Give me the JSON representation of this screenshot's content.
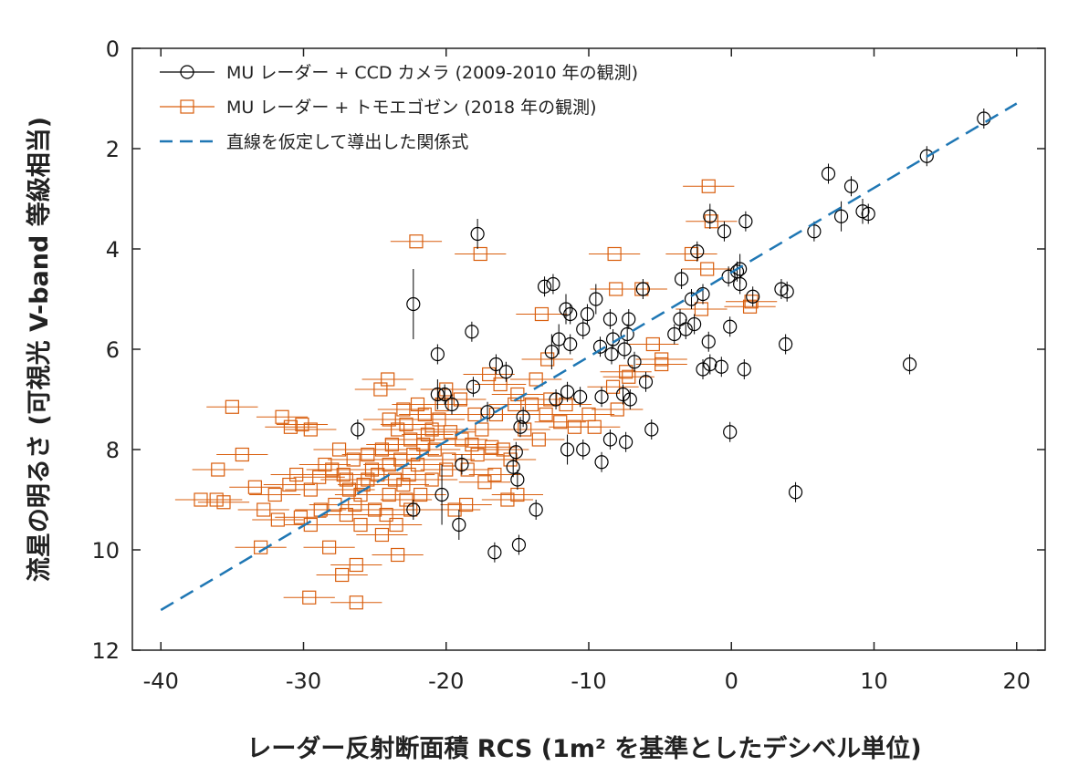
{
  "chart_data": {
    "type": "scatter",
    "xlabel": "レーダー反射断面積 RCS (1m² を基準としたデシベル単位)",
    "ylabel": "流星の明るさ (可視光 V-band 等級相当)",
    "xlim": [
      -42,
      22
    ],
    "ylim": [
      0,
      12
    ],
    "y_reversed": true,
    "x_ticks": [
      -40,
      -30,
      -20,
      -10,
      0,
      10,
      20
    ],
    "y_ticks": [
      0,
      2,
      4,
      6,
      8,
      10,
      12
    ],
    "grid": false,
    "legend_placement": "top-left",
    "series": [
      {
        "name": "MU レーダー + CCD カメラ (2009-2010 年の観測)",
        "marker": "circle",
        "color": "#000000",
        "points": [
          [
            17.7,
            1.4,
            0.2
          ],
          [
            13.7,
            2.15,
            0.2
          ],
          [
            6.8,
            2.5,
            0.2
          ],
          [
            8.4,
            2.75,
            0.2
          ],
          [
            9.2,
            3.25,
            0.25
          ],
          [
            9.6,
            3.3,
            0.2
          ],
          [
            7.7,
            3.35,
            0.3
          ],
          [
            5.8,
            3.65,
            0.2
          ],
          [
            1.0,
            3.45,
            0.2
          ],
          [
            -1.5,
            3.35,
            0.25
          ],
          [
            -0.5,
            3.65,
            0.2
          ],
          [
            -2.4,
            4.05,
            0.2
          ],
          [
            0.6,
            4.4,
            0.3
          ],
          [
            0.4,
            4.45,
            0.2
          ],
          [
            -0.2,
            4.55,
            0.2
          ],
          [
            0.6,
            4.7,
            0.2
          ],
          [
            1.5,
            4.95,
            0.2
          ],
          [
            3.5,
            4.8,
            0.2
          ],
          [
            3.9,
            4.85,
            0.2
          ],
          [
            -3.5,
            4.6,
            0.2
          ],
          [
            -2.0,
            4.9,
            0.2
          ],
          [
            -2.8,
            5.0,
            0.2
          ],
          [
            -3.6,
            5.4,
            0.2
          ],
          [
            -3.2,
            5.6,
            0.2
          ],
          [
            -4.0,
            5.7,
            0.2
          ],
          [
            -2.6,
            5.5,
            0.2
          ],
          [
            -1.6,
            5.85,
            0.2
          ],
          [
            -0.1,
            5.55,
            0.2
          ],
          [
            3.8,
            5.9,
            0.2
          ],
          [
            -1.5,
            6.3,
            0.2
          ],
          [
            -0.7,
            6.35,
            0.2
          ],
          [
            -2.0,
            6.4,
            0.2
          ],
          [
            0.9,
            6.4,
            0.2
          ],
          [
            12.5,
            6.3,
            0.2
          ],
          [
            -6.0,
            6.65,
            0.2
          ],
          [
            -6.2,
            4.8,
            0.2
          ],
          [
            -9.5,
            5.0,
            0.3
          ],
          [
            -8.5,
            5.4,
            0.2
          ],
          [
            -7.2,
            5.4,
            0.2
          ],
          [
            -7.3,
            5.7,
            0.2
          ],
          [
            -10.1,
            5.3,
            0.2
          ],
          [
            -10.4,
            5.6,
            0.2
          ],
          [
            -11.3,
            5.9,
            0.2
          ],
          [
            -12.1,
            5.8,
            0.3
          ],
          [
            -8.3,
            5.8,
            0.2
          ],
          [
            -9.2,
            5.95,
            0.2
          ],
          [
            -8.4,
            6.1,
            0.2
          ],
          [
            -7.5,
            6.0,
            0.2
          ],
          [
            -6.8,
            6.25,
            0.2
          ],
          [
            -11.3,
            5.3,
            0.2
          ],
          [
            -11.6,
            5.2,
            0.3
          ],
          [
            -12.5,
            4.7,
            0.2
          ],
          [
            -13.1,
            4.75,
            0.2
          ],
          [
            -11.5,
            6.85,
            0.2
          ],
          [
            -10.6,
            6.95,
            0.2
          ],
          [
            -12.3,
            7.0,
            0.2
          ],
          [
            -9.1,
            6.95,
            0.2
          ],
          [
            -7.6,
            6.9,
            0.2
          ],
          [
            -7.1,
            7.0,
            0.2
          ],
          [
            -5.6,
            7.6,
            0.2
          ],
          [
            -7.4,
            7.85,
            0.2
          ],
          [
            -8.5,
            7.8,
            0.2
          ],
          [
            -10.4,
            8.0,
            0.2
          ],
          [
            -11.5,
            8.0,
            0.3
          ],
          [
            -9.1,
            8.25,
            0.2
          ],
          [
            -0.1,
            7.65,
            0.2
          ],
          [
            4.5,
            8.85,
            0.2
          ],
          [
            -12.6,
            6.05,
            0.35
          ],
          [
            -17.8,
            3.7,
            0.3
          ],
          [
            -22.3,
            5.1,
            0.7
          ],
          [
            -18.2,
            5.65,
            0.2
          ],
          [
            -16.5,
            6.3,
            0.2
          ],
          [
            -15.8,
            6.45,
            0.2
          ],
          [
            -20.6,
            6.1,
            0.2
          ],
          [
            -20.1,
            6.9,
            0.2
          ],
          [
            -19.6,
            7.1,
            0.2
          ],
          [
            -18.1,
            6.75,
            0.2
          ],
          [
            -17.1,
            7.25,
            0.2
          ],
          [
            -14.6,
            7.35,
            0.2
          ],
          [
            -14.8,
            7.55,
            0.2
          ],
          [
            -15.1,
            8.05,
            0.2
          ],
          [
            -15.3,
            8.35,
            0.2
          ],
          [
            -15.0,
            8.6,
            0.2
          ],
          [
            -14.9,
            9.9,
            0.2
          ],
          [
            -16.6,
            10.05,
            0.2
          ],
          [
            -13.7,
            9.2,
            0.2
          ],
          [
            -19.1,
            9.5,
            0.3
          ],
          [
            -20.3,
            8.9,
            0.6
          ],
          [
            -22.3,
            9.2,
            0.2
          ],
          [
            -26.2,
            7.6,
            0.2
          ],
          [
            -18.9,
            8.3,
            0.2
          ],
          [
            -20.6,
            6.9,
            0.3
          ]
        ]
      },
      {
        "name": "MU レーダー + トモエゴゼン (2018 年の観測)",
        "marker": "square",
        "color": "#d95f0e",
        "points": [
          [
            -1.6,
            2.75,
            0.15
          ],
          [
            -1.4,
            3.45,
            0.15
          ],
          [
            -2.8,
            4.1,
            0.15
          ],
          [
            -1.7,
            4.4,
            0.15
          ],
          [
            -8.2,
            4.1,
            0.15
          ],
          [
            -17.6,
            4.1,
            0.15
          ],
          [
            -22.1,
            3.85,
            0.15
          ],
          [
            -8.1,
            4.8,
            0.15
          ],
          [
            -6.3,
            4.8,
            0.15
          ],
          [
            -13.3,
            5.3,
            0.15
          ],
          [
            -2.1,
            5.2,
            0.15
          ],
          [
            1.4,
            5.05,
            0.15
          ],
          [
            1.3,
            5.15,
            0.15
          ],
          [
            -5.5,
            5.9,
            0.15
          ],
          [
            -4.9,
            6.2,
            0.15
          ],
          [
            -4.9,
            6.3,
            0.15
          ],
          [
            -7.4,
            6.45,
            0.15
          ],
          [
            -7.2,
            6.55,
            0.15
          ],
          [
            -8.3,
            6.75,
            0.15
          ],
          [
            -12.9,
            6.2,
            0.15
          ],
          [
            -13.7,
            6.6,
            0.15
          ],
          [
            -12.7,
            7.0,
            0.15
          ],
          [
            -11.6,
            7.1,
            0.15
          ],
          [
            -10.0,
            7.3,
            0.15
          ],
          [
            -9.6,
            7.55,
            0.15
          ],
          [
            -8.0,
            7.2,
            0.15
          ],
          [
            -35.0,
            7.15,
            0.15
          ],
          [
            -31.5,
            7.35,
            0.15
          ],
          [
            -30.9,
            7.55,
            0.15
          ],
          [
            -30.1,
            7.5,
            0.15
          ],
          [
            -29.5,
            7.6,
            0.15
          ],
          [
            -34.3,
            8.1,
            0.15
          ],
          [
            -36.0,
            8.4,
            0.15
          ],
          [
            -37.2,
            9.0,
            0.15
          ],
          [
            -36.1,
            9.0,
            0.15
          ],
          [
            -35.6,
            9.05,
            0.15
          ],
          [
            -33.4,
            8.75,
            0.15
          ],
          [
            -32.8,
            9.2,
            0.15
          ],
          [
            -33.0,
            9.95,
            0.15
          ],
          [
            -30.2,
            9.35,
            0.15
          ],
          [
            -29.5,
            9.5,
            0.15
          ],
          [
            -28.2,
            9.95,
            0.15
          ],
          [
            -27.3,
            10.5,
            0.15
          ],
          [
            -26.3,
            10.3,
            0.15
          ],
          [
            -29.6,
            10.95,
            0.15
          ],
          [
            -26.3,
            11.05,
            0.15
          ],
          [
            -23.4,
            10.1,
            0.15
          ],
          [
            -24.6,
            6.8,
            0.15
          ],
          [
            -24.1,
            6.6,
            0.15
          ],
          [
            -22.8,
            7.5,
            0.15
          ],
          [
            -23.4,
            7.6,
            0.15
          ],
          [
            -21.6,
            7.9,
            0.15
          ],
          [
            -22.3,
            8.1,
            0.15
          ],
          [
            -23.2,
            8.2,
            0.15
          ],
          [
            -24.0,
            8.3,
            0.15
          ],
          [
            -24.8,
            8.5,
            0.15
          ],
          [
            -25.5,
            8.6,
            0.15
          ],
          [
            -26.0,
            8.9,
            0.15
          ],
          [
            -27.0,
            8.6,
            0.15
          ],
          [
            -28.0,
            8.4,
            0.15
          ],
          [
            -28.9,
            8.55,
            0.15
          ],
          [
            -29.5,
            8.8,
            0.15
          ],
          [
            -31.0,
            8.7,
            0.15
          ],
          [
            -32.0,
            8.9,
            0.15
          ],
          [
            -21.0,
            7.6,
            0.15
          ],
          [
            -20.5,
            7.4,
            0.15
          ],
          [
            -19.7,
            7.65,
            0.15
          ],
          [
            -18.9,
            7.8,
            0.15
          ],
          [
            -18.2,
            7.9,
            0.15
          ],
          [
            -17.5,
            7.6,
            0.15
          ],
          [
            -16.8,
            7.95,
            0.15
          ],
          [
            -16.0,
            8.0,
            0.15
          ],
          [
            -15.5,
            8.2,
            0.15
          ],
          [
            -16.6,
            8.5,
            0.15
          ],
          [
            -17.3,
            8.65,
            0.15
          ],
          [
            -18.6,
            9.1,
            0.15
          ],
          [
            -19.4,
            9.2,
            0.15
          ],
          [
            -15.7,
            9.0,
            0.15
          ],
          [
            -15.0,
            8.9,
            0.15
          ],
          [
            -20.0,
            8.4,
            0.15
          ],
          [
            -21.0,
            8.6,
            0.15
          ],
          [
            -22.0,
            8.3,
            0.15
          ],
          [
            -23.0,
            8.7,
            0.15
          ],
          [
            -24.0,
            8.9,
            0.15
          ],
          [
            -25.0,
            9.2,
            0.15
          ],
          [
            -26.0,
            9.5,
            0.15
          ],
          [
            -27.0,
            9.3,
            0.15
          ],
          [
            -22.5,
            9.2,
            0.15
          ],
          [
            -23.5,
            9.5,
            0.15
          ],
          [
            -24.5,
            9.7,
            0.15
          ],
          [
            -20.0,
            6.8,
            0.15
          ],
          [
            -17.0,
            6.5,
            0.15
          ],
          [
            -15.0,
            6.9,
            0.15
          ],
          [
            -14.0,
            7.1,
            0.15
          ],
          [
            -13.0,
            7.3,
            0.15
          ],
          [
            -14.5,
            7.6,
            0.15
          ],
          [
            -12.0,
            7.45,
            0.15
          ],
          [
            -11.0,
            7.55,
            0.15
          ],
          [
            -19.0,
            7.0,
            0.15
          ],
          [
            -18.0,
            7.3,
            0.15
          ],
          [
            -16.5,
            7.3,
            0.15
          ],
          [
            -21.5,
            7.3,
            0.15
          ],
          [
            -22.5,
            7.8,
            0.15
          ],
          [
            -23.8,
            7.9,
            0.15
          ],
          [
            -24.5,
            8.0,
            0.15
          ],
          [
            -25.5,
            8.1,
            0.15
          ],
          [
            -26.5,
            8.2,
            0.15
          ],
          [
            -27.5,
            8.0,
            0.15
          ],
          [
            -28.5,
            8.3,
            0.15
          ],
          [
            -20.8,
            8.0,
            0.15
          ],
          [
            -19.8,
            8.2,
            0.15
          ],
          [
            -18.5,
            8.4,
            0.15
          ],
          [
            -17.8,
            8.1,
            0.15
          ],
          [
            -21.8,
            8.9,
            0.15
          ],
          [
            -22.8,
            9.0,
            0.15
          ],
          [
            -25.8,
            8.7,
            0.15
          ],
          [
            -27.8,
            9.1,
            0.15
          ],
          [
            -28.8,
            9.2,
            0.15
          ],
          [
            -30.5,
            8.5,
            0.15
          ],
          [
            -31.8,
            9.4,
            0.15
          ],
          [
            -23.0,
            7.2,
            0.15
          ],
          [
            -24.0,
            7.4,
            0.15
          ],
          [
            -22.0,
            7.1,
            0.15
          ],
          [
            -16.2,
            6.7,
            0.15
          ],
          [
            -15.2,
            7.1,
            0.15
          ],
          [
            -13.5,
            7.8,
            0.15
          ],
          [
            -20.3,
            7.1,
            0.15
          ],
          [
            -21.3,
            7.7,
            0.15
          ],
          [
            -22.6,
            8.5,
            0.15
          ],
          [
            -23.6,
            8.6,
            0.15
          ],
          [
            -25.2,
            8.4,
            0.15
          ],
          [
            -26.8,
            8.8,
            0.15
          ],
          [
            -27.2,
            8.5,
            0.15
          ],
          [
            -26.4,
            9.1,
            0.15
          ],
          [
            -24.2,
            9.3,
            0.15
          ]
        ]
      },
      {
        "name": "直線を仮定して導出した関係式",
        "type": "line",
        "style": "dashed",
        "color": "#1f77b4",
        "x": [
          -40,
          20
        ],
        "y": [
          11.2,
          1.1
        ]
      }
    ]
  }
}
